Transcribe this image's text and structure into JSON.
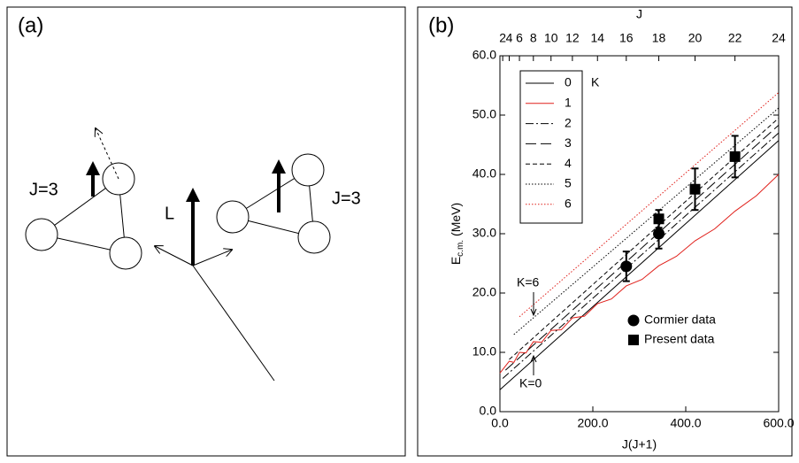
{
  "panel_a": {
    "label": "(a)",
    "left_spin": "J=3",
    "orbital": "L",
    "right_spin": "J=3"
  },
  "chart_data": {
    "type": "line",
    "label": "(b)",
    "x_label": "J(J+1)",
    "x2_label": "J",
    "ylabel": "E",
    "ylabel_sub": "c.m.",
    "ylabel_unit": "(MeV)",
    "xlim": [
      0,
      600
    ],
    "xticks": [
      {
        "value": 0,
        "label": "0.0"
      },
      {
        "value": 200,
        "label": "200.0"
      },
      {
        "value": 400,
        "label": "400.0"
      },
      {
        "value": 600,
        "label": "600.0"
      }
    ],
    "x2ticks": [
      2,
      4,
      6,
      8,
      10,
      12,
      14,
      16,
      18,
      20,
      22,
      24
    ],
    "ylim": [
      0,
      60
    ],
    "yticks": [
      {
        "value": 0,
        "label": "0.0"
      },
      {
        "value": 10,
        "label": "10.0"
      },
      {
        "value": 20,
        "label": "20.0"
      },
      {
        "value": 30,
        "label": "30.0"
      },
      {
        "value": 40,
        "label": "40.0"
      },
      {
        "value": 50,
        "label": "50.0"
      },
      {
        "value": 60,
        "label": "60.0"
      }
    ],
    "legend_title": "K",
    "series": [
      {
        "name": "0",
        "color": "#000000",
        "dash": "none",
        "x": [
          0,
          600
        ],
        "values": [
          3.7,
          45.7
        ]
      },
      {
        "name": "1",
        "color": "#e0201b",
        "dash": "none",
        "x": [
          0,
          20,
          30,
          42,
          56,
          72,
          90,
          110,
          132,
          156,
          182,
          210,
          240,
          272,
          306,
          342,
          380,
          420,
          462,
          506,
          552,
          600
        ],
        "values": [
          6.5,
          8.5,
          8.3,
          10.0,
          9.9,
          11.8,
          11.7,
          13.7,
          13.8,
          15.8,
          16.1,
          18.2,
          19.0,
          21.2,
          22.3,
          24.6,
          26.2,
          28.8,
          30.8,
          33.8,
          36.4,
          40.0
        ]
      },
      {
        "name": "2",
        "color": "#000000",
        "dash": "9 3 2 3",
        "x": [
          6,
          600
        ],
        "values": [
          5.6,
          47.0
        ]
      },
      {
        "name": "3",
        "color": "#000000",
        "dash": "12 5",
        "x": [
          12,
          600
        ],
        "values": [
          7.0,
          48.3
        ]
      },
      {
        "name": "4",
        "color": "#000000",
        "dash": "5 3",
        "x": [
          20,
          600
        ],
        "values": [
          8.8,
          49.5
        ]
      },
      {
        "name": "5",
        "color": "#000000",
        "dash": "1.5 2",
        "x": [
          30,
          600
        ],
        "values": [
          13.0,
          51.2
        ]
      },
      {
        "name": "6",
        "color": "#e0201b",
        "dash": "1.5 2",
        "x": [
          42,
          600
        ],
        "values": [
          16.0,
          53.8
        ]
      }
    ],
    "scatter": [
      {
        "name": "Cormier data",
        "marker": "circle",
        "x": [
          272,
          342
        ],
        "values": [
          24.5,
          30.0
        ],
        "errors": [
          2.5,
          2.5
        ]
      },
      {
        "name": "Present data",
        "marker": "square",
        "x": [
          342,
          420,
          506
        ],
        "values": [
          32.5,
          37.5,
          43.0
        ],
        "errors": [
          1.5,
          3.5,
          3.5
        ]
      }
    ],
    "annotations": [
      "K=6",
      "K=0"
    ]
  }
}
